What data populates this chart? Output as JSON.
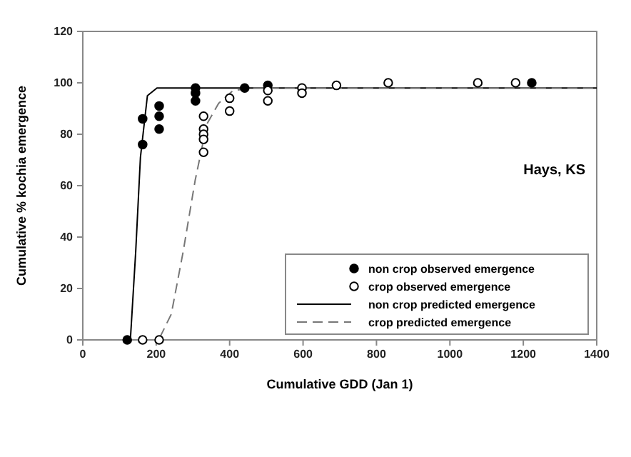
{
  "chart_data": {
    "type": "scatter",
    "xlabel": "Cumulative GDD (Jan 1)",
    "ylabel": "Cumulative % kochia emergence",
    "xlim": [
      0,
      1400
    ],
    "xticks": [
      0,
      200,
      400,
      600,
      800,
      1000,
      1200,
      1400
    ],
    "ylim": [
      0,
      120
    ],
    "yticks": [
      0,
      20,
      40,
      60,
      80,
      100,
      120
    ],
    "annotations": [
      "Hays, KS"
    ],
    "legend": "bottom right",
    "grid": false,
    "series": [
      {
        "name": "non crop observed emergence",
        "marker": "circle",
        "color": "#000000",
        "x": [
          121,
          163,
          163,
          208,
          208,
          208,
          307,
          307,
          307,
          441,
          504,
          1223
        ],
        "values": [
          0,
          76,
          86,
          91,
          87,
          82,
          98,
          96,
          93,
          98,
          99,
          100
        ]
      },
      {
        "name": "crop observed emergence",
        "marker": "circle",
        "color": "#ffffff",
        "x": [
          163,
          208,
          329,
          329,
          329,
          329,
          329,
          400,
          400,
          504,
          504,
          597,
          597,
          691,
          832,
          1076,
          1179
        ],
        "values": [
          0,
          0,
          87,
          82,
          80,
          78,
          73,
          94,
          89,
          97,
          93,
          98,
          96,
          99,
          100,
          100,
          100
        ]
      },
      {
        "name": "non crop predicted emergence",
        "type": "line",
        "line_style": "solid",
        "color": "#000000",
        "x": [
          121,
          130,
          144,
          157,
          176,
          202,
          1400
        ],
        "values": [
          0,
          1,
          34,
          71,
          95,
          98,
          98
        ]
      },
      {
        "name": "crop predicted emergence",
        "type": "line",
        "line_style": "dashed",
        "color": "#777777",
        "x": [
          210,
          241,
          273,
          306,
          338,
          370,
          409,
          460,
          1400
        ],
        "values": [
          1,
          10,
          34,
          62,
          84,
          92,
          97,
          98,
          98
        ]
      }
    ]
  }
}
